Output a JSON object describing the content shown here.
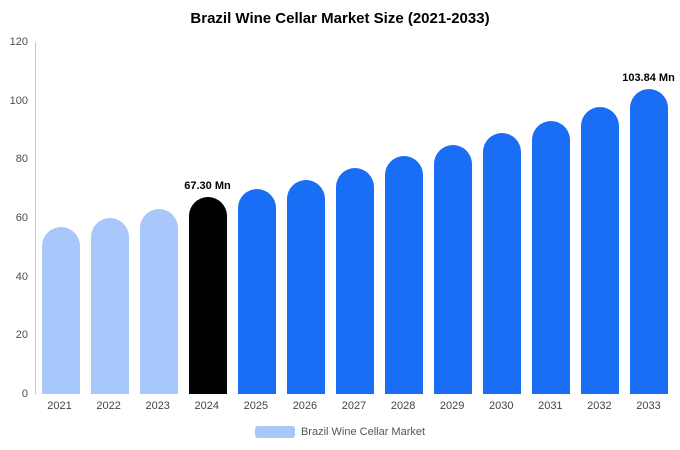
{
  "chart_data": {
    "type": "bar",
    "title": "Brazil Wine Cellar Market Size (2021-2033)",
    "xlabel": "",
    "ylabel": "",
    "ylim": [
      0,
      120
    ],
    "yticks": [
      0,
      20,
      40,
      60,
      80,
      100,
      120
    ],
    "grid": false,
    "legend_position": "bottom",
    "categories": [
      "2021",
      "2022",
      "2023",
      "2024",
      "2025",
      "2026",
      "2027",
      "2028",
      "2029",
      "2030",
      "2031",
      "2032",
      "2033"
    ],
    "values": [
      57,
      60,
      63,
      67.3,
      70,
      73,
      77,
      81,
      85,
      89,
      93,
      98,
      103.84
    ],
    "bars": [
      {
        "year": "2021",
        "value": 57,
        "color": "historical",
        "label": ""
      },
      {
        "year": "2022",
        "value": 60,
        "color": "historical",
        "label": ""
      },
      {
        "year": "2023",
        "value": 63,
        "color": "historical",
        "label": ""
      },
      {
        "year": "2024",
        "value": 67.3,
        "color": "highlight",
        "label": "67.30 Mn"
      },
      {
        "year": "2025",
        "value": 70,
        "color": "forecast",
        "label": ""
      },
      {
        "year": "2026",
        "value": 73,
        "color": "forecast",
        "label": ""
      },
      {
        "year": "2027",
        "value": 77,
        "color": "forecast",
        "label": ""
      },
      {
        "year": "2028",
        "value": 81,
        "color": "forecast",
        "label": ""
      },
      {
        "year": "2029",
        "value": 85,
        "color": "forecast",
        "label": ""
      },
      {
        "year": "2030",
        "value": 89,
        "color": "forecast",
        "label": ""
      },
      {
        "year": "2031",
        "value": 93,
        "color": "forecast",
        "label": ""
      },
      {
        "year": "2032",
        "value": 98,
        "color": "forecast",
        "label": ""
      },
      {
        "year": "2033",
        "value": 103.84,
        "color": "forecast",
        "label": "103.84 Mn"
      }
    ],
    "colors": {
      "historical": "#a8c7fa",
      "highlight": "#000000",
      "forecast": "#1a6ef5"
    },
    "legend": {
      "label": "Brazil Wine Cellar Market",
      "swatch_color": "#a8c7fa"
    }
  }
}
